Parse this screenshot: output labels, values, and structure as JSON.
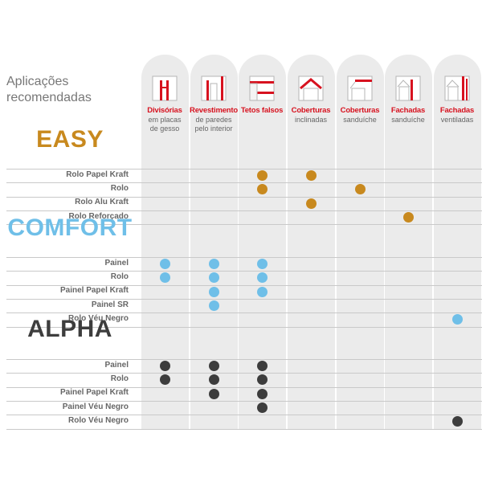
{
  "title": "Aplicações\nrecomendadas",
  "columns": [
    {
      "label": "Divisórias",
      "sub": "em placas\nde gesso",
      "icon": "partition-wall-icon"
    },
    {
      "label": "Revestimento",
      "sub": "de paredes\npelo interior",
      "icon": "wall-lining-icon"
    },
    {
      "label": "Tetos falsos",
      "sub": "",
      "icon": "false-ceiling-icon"
    },
    {
      "label": "Coberturas",
      "sub": "inclinadas",
      "icon": "pitched-roof-icon"
    },
    {
      "label": "Coberturas",
      "sub": "sanduíche",
      "icon": "sandwich-roof-icon"
    },
    {
      "label": "Fachadas",
      "sub": "sanduíche",
      "icon": "sandwich-facade-icon"
    },
    {
      "label": "Fachadas",
      "sub": "ventiladas",
      "icon": "ventilated-facade-icon"
    }
  ],
  "sections": [
    {
      "name": "EASY",
      "color": "#c8891e",
      "rows": [
        {
          "label": "Rolo Papel Kraft",
          "marks": [
            3,
            4
          ]
        },
        {
          "label": "Rolo",
          "marks": [
            3,
            5
          ]
        },
        {
          "label": "Rolo Alu Kraft",
          "marks": [
            4
          ]
        },
        {
          "label": "Rolo Reforçado",
          "marks": [
            6
          ]
        }
      ]
    },
    {
      "name": "COMFORT",
      "color": "#6fbfe8",
      "rows": [
        {
          "label": "Painel",
          "marks": [
            1,
            2,
            3
          ]
        },
        {
          "label": "Rolo",
          "marks": [
            1,
            2,
            3
          ]
        },
        {
          "label": "Painel Papel Kraft",
          "marks": [
            2,
            3
          ]
        },
        {
          "label": "Painel SR",
          "marks": [
            2
          ]
        },
        {
          "label": "Rolo Véu Negro",
          "marks": [
            7
          ]
        }
      ]
    },
    {
      "name": "ALPHA",
      "color": "#3d3d3d",
      "rows": [
        {
          "label": "Painel",
          "marks": [
            1,
            2,
            3
          ]
        },
        {
          "label": "Rolo",
          "marks": [
            1,
            2,
            3
          ]
        },
        {
          "label": "Painel Papel Kraft",
          "marks": [
            2,
            3
          ]
        },
        {
          "label": "Painel Véu Negro",
          "marks": [
            3
          ]
        },
        {
          "label": "Rolo Véu Negro",
          "marks": [
            7
          ]
        }
      ]
    }
  ]
}
